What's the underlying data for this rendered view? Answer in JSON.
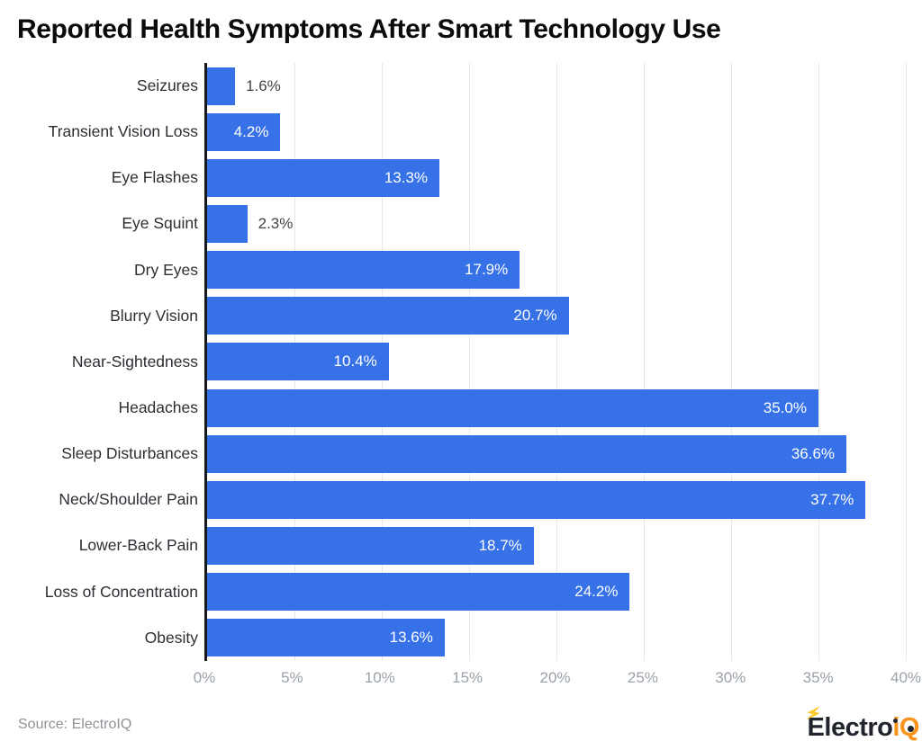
{
  "chart": {
    "title": "Reported Health Symptoms After Smart Technology Use"
  },
  "chart_data": {
    "type": "bar",
    "orientation": "horizontal",
    "title": "Reported Health Symptoms After Smart Technology Use",
    "xlabel": "",
    "ylabel": "",
    "xlim": [
      0,
      40
    ],
    "x_ticks": [
      "0%",
      "5%",
      "10%",
      "15%",
      "20%",
      "25%",
      "30%",
      "35%",
      "40%"
    ],
    "grid": "vertical",
    "legend": "none",
    "categories": [
      "Seizures",
      "Transient Vision Loss",
      "Eye Flashes",
      "Eye Squint",
      "Dry Eyes",
      "Blurry Vision",
      "Near-Sightedness",
      "Headaches",
      "Sleep Disturbances",
      "Neck/Shoulder Pain",
      "Lower-Back Pain",
      "Loss of Concentration",
      "Obesity"
    ],
    "values": [
      1.6,
      4.2,
      13.3,
      2.3,
      17.9,
      20.7,
      10.4,
      35.0,
      36.6,
      37.7,
      18.7,
      24.2,
      13.6
    ],
    "value_labels": [
      "1.6%",
      "4.2%",
      "13.3%",
      "2.3%",
      "17.9%",
      "20.7%",
      "10.4%",
      "35.0%",
      "36.6%",
      "37.7%",
      "18.7%",
      "24.2%",
      "13.6%"
    ],
    "bar_color": "#3671e8",
    "inside_label_color": "#ffffff",
    "outside_label_color": "#404448",
    "axis_line_color": "#15181c",
    "gridline_color": "#e8e8e8",
    "tick_label_color": "#9aa1a9"
  },
  "footer": {
    "source": "Source: ElectroIQ",
    "logo": {
      "text_dark": "Electro",
      "text_accent": "iQ",
      "dark_color": "#20242d",
      "accent_color": "#f7941d"
    }
  },
  "icons": {
    "lightning_bolt": "⚡"
  }
}
